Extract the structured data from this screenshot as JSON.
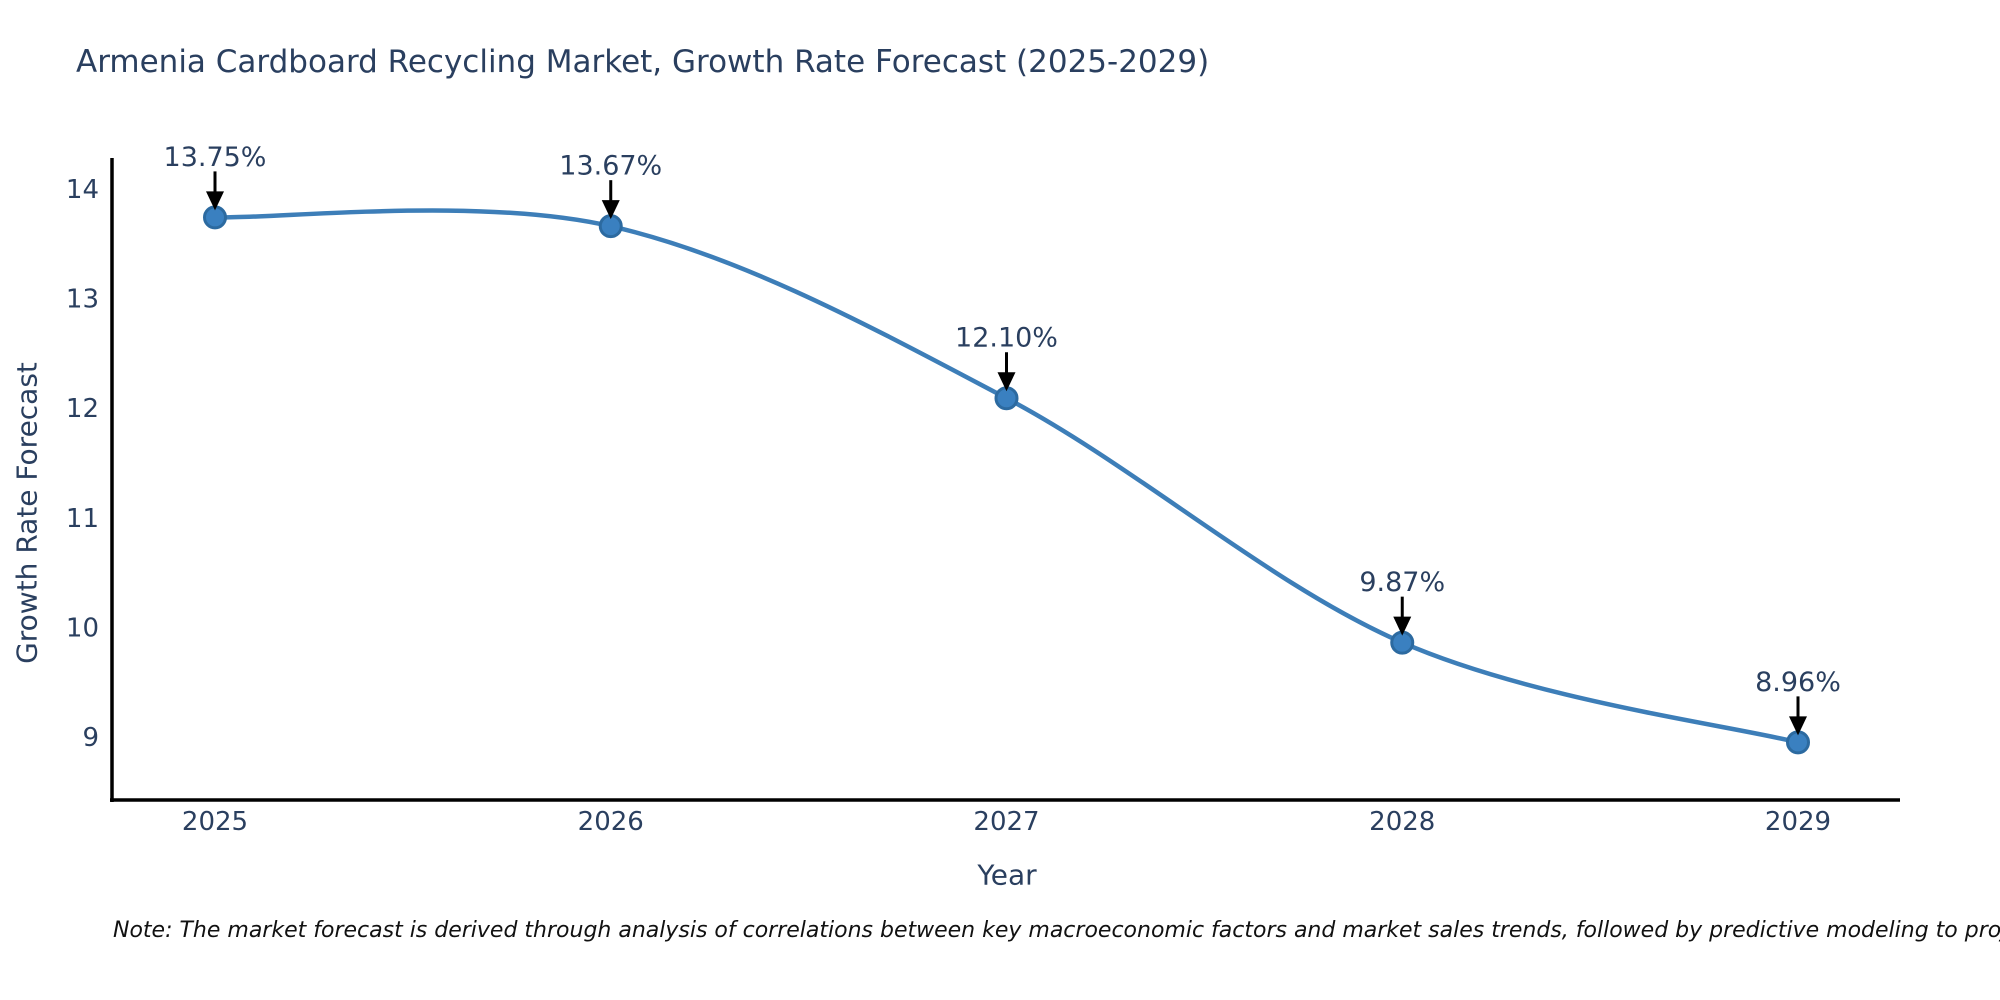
{
  "chart_data": {
    "type": "line",
    "title": "Armenia Cardboard Recycling Market, Growth Rate Forecast (2025-2029)",
    "xlabel": "Year",
    "ylabel": "Growth Rate Forecast",
    "categories": [
      "2025",
      "2026",
      "2027",
      "2028",
      "2029"
    ],
    "series": [
      {
        "name": "Growth Rate Forecast",
        "values": [
          13.75,
          13.67,
          12.1,
          9.87,
          8.96
        ],
        "point_labels": [
          "13.75%",
          "13.67%",
          "12.10%",
          "9.87%",
          "8.96%"
        ]
      }
    ],
    "yticks": [
      9,
      10,
      11,
      12,
      13,
      14
    ],
    "ylim": [
      8.4,
      14.9
    ],
    "line_shape": "spline",
    "grid": false,
    "legend_position": "none",
    "note": "Note: The market forecast is derived through analysis of correlations between key macroeconomic factors and market sales trends, followed by predictive modeling to project future sales",
    "colors": {
      "line": "#3d7eb8",
      "marker_fill": "#3a80c0",
      "marker_edge": "#2c6aa0",
      "text": "#2a3f5f",
      "axis": "#000000",
      "annotation_arrow": "#000000"
    }
  }
}
